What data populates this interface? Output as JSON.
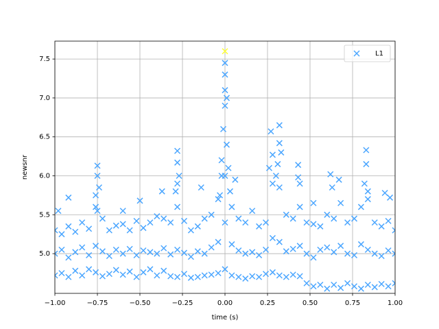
{
  "chart_data": {
    "type": "scatter",
    "xlabel": "time (s)",
    "ylabel": "newsnr",
    "xlim": [
      -1,
      1
    ],
    "ylim": [
      4.49,
      7.73
    ],
    "xticks": [
      {
        "value": -1,
        "label": "−1.00"
      },
      {
        "value": -0.75,
        "label": "−0.75"
      },
      {
        "value": -0.5,
        "label": "−0.50"
      },
      {
        "value": -0.25,
        "label": "−0.25"
      },
      {
        "value": 0,
        "label": "0.00"
      },
      {
        "value": 0.25,
        "label": "0.25"
      },
      {
        "value": 0.5,
        "label": "0.50"
      },
      {
        "value": 0.75,
        "label": "0.75"
      },
      {
        "value": 1,
        "label": "1.00"
      }
    ],
    "yticks": [
      {
        "value": 5,
        "label": "5.0"
      },
      {
        "value": 5.5,
        "label": "5.5"
      },
      {
        "value": 6,
        "label": "6.0"
      },
      {
        "value": 6.5,
        "label": "6.5"
      },
      {
        "value": 7,
        "label": "7.0"
      },
      {
        "value": 7.5,
        "label": "7.5"
      }
    ],
    "grid": true,
    "legend": "upper right",
    "series": [
      {
        "name": "L1",
        "color": "#4ba6ff",
        "x": [
          -1,
          -0.96,
          -0.92,
          -0.88,
          -0.84,
          -0.8,
          -0.76,
          -0.72,
          -0.68,
          -0.64,
          -0.6,
          -0.56,
          -0.52,
          -0.48,
          -0.44,
          -0.4,
          -0.36,
          -0.32,
          -0.28,
          -0.24,
          -0.2,
          -0.16,
          -0.12,
          -0.08,
          -0.04,
          0,
          0.04,
          0.08,
          0.12,
          0.16,
          0.2,
          0.24,
          0.28,
          0.32,
          0.36,
          0.4,
          0.44,
          0.48,
          0.52,
          0.56,
          0.6,
          0.64,
          0.68,
          0.72,
          0.76,
          0.8,
          0.84,
          0.88,
          0.92,
          0.96,
          1,
          -1,
          -0.96,
          -0.92,
          -0.88,
          -0.84,
          -0.8,
          -0.76,
          -0.72,
          -0.68,
          -0.64,
          -0.6,
          -0.56,
          -0.52,
          -0.48,
          -0.44,
          -0.4,
          -0.36,
          -0.32,
          -0.28,
          -0.24,
          -0.2,
          -0.16,
          -0.12,
          -0.08,
          -0.04,
          0,
          0.04,
          0.08,
          0.12,
          0.16,
          0.2,
          0.24,
          0.28,
          0.32,
          0.36,
          0.4,
          0.44,
          0.48,
          0.52,
          0.56,
          0.6,
          0.64,
          0.68,
          0.72,
          0.76,
          0.8,
          0.84,
          0.88,
          0.92,
          0.96,
          1,
          -1,
          -0.96,
          -0.92,
          -0.88,
          -0.84,
          -0.8,
          -0.76,
          -0.72,
          -0.68,
          -0.64,
          -0.6,
          -0.56,
          -0.52,
          -0.48,
          -0.44,
          -0.4,
          -0.36,
          -0.32,
          -0.28,
          -0.24,
          -0.2,
          -0.16,
          -0.12,
          -0.08,
          -0.04,
          0,
          0.04,
          0.08,
          0.12,
          0.16,
          0.2,
          0.24,
          0.28,
          0.32,
          0.36,
          0.4,
          0.44,
          0.48,
          0.52,
          0.56,
          0.6,
          0.64,
          0.68,
          0.72,
          0.76,
          0.8,
          0.84,
          0.88,
          0.92,
          0.96,
          1,
          -0.92,
          -0.98,
          -0.75,
          -0.75,
          -0.74,
          -0.76,
          -0.75,
          -0.5,
          -0.37,
          -0.28,
          -0.28,
          -0.28,
          -0.29,
          -0.27,
          -0.14,
          -0.02,
          -0.01,
          0,
          0,
          0,
          0,
          0.01,
          0.01,
          0.02,
          -0.02,
          0.03,
          -0.03,
          0.06,
          0.27,
          0.28,
          0.26,
          0.32,
          0.32,
          0.33,
          0.31,
          0.3,
          0.43,
          0.43,
          0.44,
          0.62,
          0.63,
          0.67,
          0.83,
          0.83,
          0.82,
          0.84,
          0.94,
          0.97,
          -0.6,
          0.52
        ],
        "values": [
          4.72,
          4.75,
          4.7,
          4.78,
          4.72,
          4.8,
          4.76,
          4.71,
          4.74,
          4.79,
          4.73,
          4.77,
          4.7,
          4.76,
          4.8,
          4.72,
          4.78,
          4.71,
          4.7,
          4.74,
          4.69,
          4.7,
          4.72,
          4.73,
          4.75,
          4.8,
          4.72,
          4.7,
          4.68,
          4.71,
          4.7,
          4.74,
          4.76,
          4.72,
          4.7,
          4.73,
          4.71,
          4.62,
          4.58,
          4.6,
          4.55,
          4.6,
          4.56,
          4.62,
          4.58,
          4.55,
          4.6,
          4.57,
          4.61,
          4.58,
          4.62,
          5.0,
          5.05,
          4.95,
          5.02,
          5.08,
          4.98,
          5.1,
          5.03,
          4.97,
          5.05,
          5.0,
          5.06,
          4.98,
          5.04,
          5.02,
          5.0,
          5.07,
          4.99,
          5.05,
          5.01,
          4.96,
          5.03,
          5.0,
          5.08,
          5.15,
          5.4,
          5.12,
          5.04,
          5.0,
          5.02,
          4.98,
          5.05,
          5.2,
          5.15,
          5.03,
          5.06,
          5.1,
          5.0,
          4.95,
          5.05,
          5.08,
          5.02,
          5.1,
          5.0,
          4.98,
          5.12,
          5.05,
          5.0,
          4.97,
          5.04,
          5.0,
          5.3,
          5.25,
          5.35,
          5.28,
          5.4,
          5.32,
          5.6,
          5.45,
          5.3,
          5.36,
          5.38,
          5.3,
          5.42,
          5.33,
          5.4,
          5.48,
          5.45,
          5.4,
          5.6,
          5.42,
          5.3,
          5.35,
          5.45,
          5.5,
          5.7,
          6.0,
          5.6,
          5.45,
          5.4,
          5.55,
          5.35,
          5.4,
          5.9,
          5.85,
          5.5,
          5.45,
          5.6,
          5.4,
          5.38,
          5.35,
          5.5,
          5.45,
          5.65,
          5.4,
          5.45,
          5.6,
          5.7,
          5.4,
          5.35,
          5.42,
          5.3,
          5.72,
          5.55,
          6.13,
          6.0,
          5.85,
          5.75,
          5.55,
          5.68,
          5.8,
          6.32,
          6.17,
          5.9,
          5.8,
          6.0,
          5.85,
          6.2,
          6.6,
          6.9,
          7.1,
          7.3,
          7.45,
          7.0,
          6.4,
          6.1,
          6.0,
          5.8,
          5.75,
          5.95,
          6.57,
          6.27,
          6.1,
          6.65,
          6.42,
          6.3,
          6.15,
          6.0,
          6.14,
          5.98,
          5.9,
          6.02,
          5.85,
          5.95,
          6.33,
          6.15,
          5.9,
          5.8,
          5.78,
          5.72,
          5.55,
          5.65
        ]
      }
    ],
    "highlight": {
      "x": 0,
      "y": 7.6,
      "color": "#ffff33"
    }
  }
}
